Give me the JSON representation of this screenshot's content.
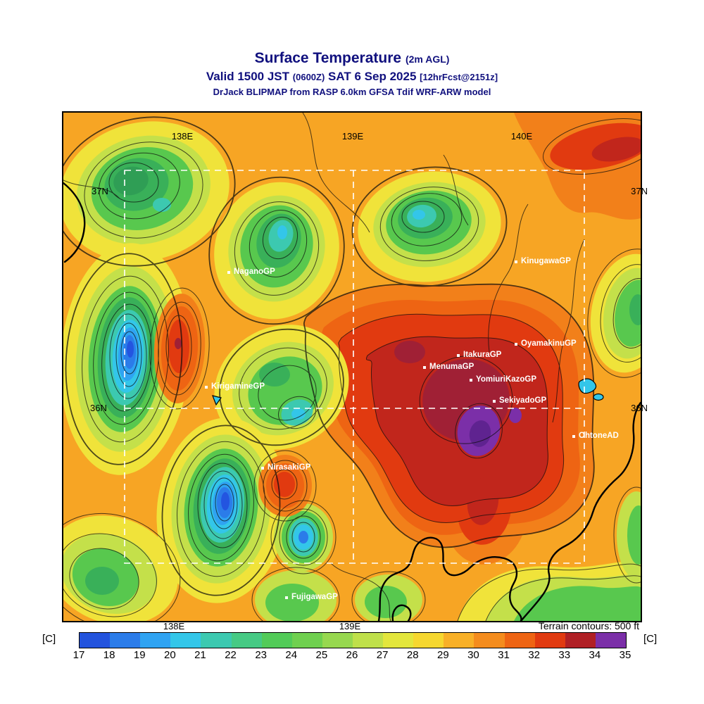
{
  "header": {
    "title": "Surface Temperature",
    "title_note": "(2m AGL)",
    "valid_prefix": "Valid 1500 JST",
    "valid_zulu": "(0600Z)",
    "valid_date": "SAT 6 Sep 2025",
    "valid_fcst": "[12hrFcst@2151z]",
    "model_line": "DrJack BLIPMAP from RASP 6.0km GFSA Tdif WRF-ARW model"
  },
  "map": {
    "top_labels": [
      "138E",
      "139E",
      "140E"
    ],
    "bottom_labels": [
      "138E",
      "139E"
    ],
    "left_labels": [
      "37N",
      "36N"
    ],
    "right_labels": [
      "37N",
      "36N"
    ],
    "stations": [
      {
        "label": "NaganoGP"
      },
      {
        "label": "KinugawaGP"
      },
      {
        "label": "OyamakinuGP"
      },
      {
        "label": "ItakuraGP"
      },
      {
        "label": "MenumaGP"
      },
      {
        "label": "YomiuriKazoGP"
      },
      {
        "label": "SekiyadoGP"
      },
      {
        "label": "KirigamineGP"
      },
      {
        "label": "OhtoneAD"
      },
      {
        "label": "NirasakiGP"
      },
      {
        "label": "FujigawaGP"
      }
    ],
    "terrain_note": "Terrain contours: 500 ft"
  },
  "colorbar": {
    "unit": "[C]",
    "ticks": [
      17,
      18,
      19,
      20,
      21,
      22,
      23,
      24,
      25,
      26,
      27,
      28,
      29,
      30,
      31,
      32,
      33,
      34,
      35
    ],
    "colors": [
      "#2353dd",
      "#2b7ce9",
      "#2fa3f2",
      "#33c6e9",
      "#3cc9b0",
      "#46ca84",
      "#52cb58",
      "#6fd04f",
      "#97d84f",
      "#bfe04a",
      "#e3e63c",
      "#f6d72f",
      "#f8b027",
      "#f48c1d",
      "#ee6413",
      "#e13a10",
      "#b02025",
      "#7b2fa8"
    ]
  }
}
